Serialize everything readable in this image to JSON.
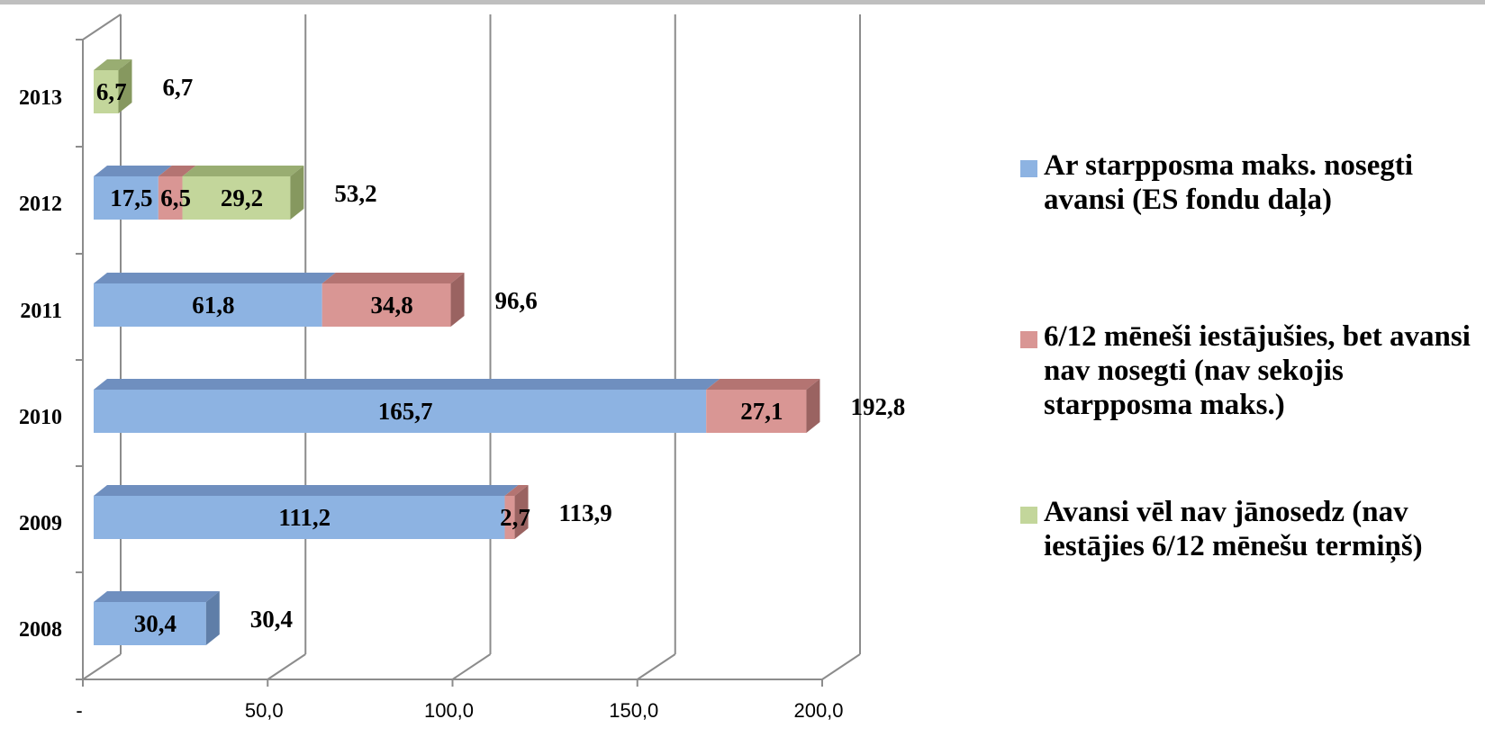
{
  "chart_data": {
    "type": "bar",
    "orientation": "horizontal",
    "stacked": true,
    "three_d": true,
    "categories": [
      "2008",
      "2009",
      "2010",
      "2011",
      "2012",
      "2013"
    ],
    "series": [
      {
        "name": "Ar starpposma maks. nosegti avansi (ES fondu daļa)",
        "values": [
          30.4,
          111.2,
          165.7,
          61.8,
          17.5,
          null
        ],
        "labels": [
          "30,4",
          "111,2",
          "165,7",
          "61,8",
          "17,5",
          ""
        ],
        "color": "#8db3e2",
        "top_color": "#6f8fbf",
        "side_color": "#5f7ea8"
      },
      {
        "name": "6/12 mēneši iestājušies, bet avansi nav nosegti (nav sekojis starpposma maks.)",
        "values": [
          null,
          2.7,
          27.1,
          34.8,
          6.5,
          null
        ],
        "labels": [
          "",
          "2,7",
          "27,1",
          "34,8",
          "6,5",
          ""
        ],
        "color": "#d99694",
        "top_color": "#b47472",
        "side_color": "#9a6361"
      },
      {
        "name": "Avansi vēl nav jānosedz (nav iestājies 6/12 mēnešu termiņš)",
        "values": [
          null,
          null,
          null,
          null,
          29.2,
          6.7
        ],
        "labels": [
          "",
          "",
          "",
          "",
          "29,2",
          "6,7"
        ],
        "color": "#c3d69b",
        "top_color": "#99ad72",
        "side_color": "#86985f"
      }
    ],
    "totals": [
      30.4,
      113.9,
      192.8,
      96.6,
      53.2,
      6.7
    ],
    "total_labels": [
      "30,4",
      "113,9",
      "192,8",
      "96,6",
      "53,2",
      "6,7"
    ],
    "xlim": [
      0,
      200
    ],
    "xticks": [
      0,
      50,
      100,
      150,
      200
    ],
    "xtick_labels": [
      "-",
      "50,0",
      "100,0",
      "150,0",
      "200,0"
    ],
    "grid": true,
    "legend_position": "right",
    "title": "",
    "xlabel": "",
    "ylabel": ""
  }
}
